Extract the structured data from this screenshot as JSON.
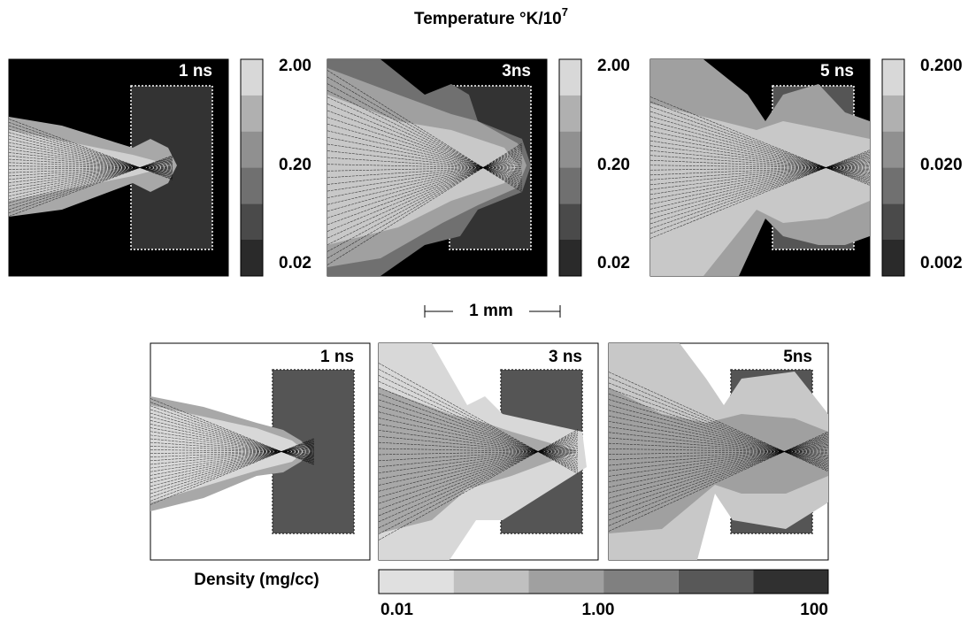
{
  "title": {
    "text": "Temperature °K/10",
    "superscript": "7"
  },
  "temperature_panels": [
    {
      "time": "1 ns",
      "colorbar_labels": [
        "2.00",
        "0.20",
        "0.02"
      ]
    },
    {
      "time": "3ns",
      "colorbar_labels": [
        "2.00",
        "0.20",
        "0.02"
      ]
    },
    {
      "time": "5 ns",
      "colorbar_labels": [
        "0.200",
        "0.020",
        "0.002"
      ]
    }
  ],
  "scale_bar": "1 mm",
  "density_panels": [
    {
      "time": "1 ns"
    },
    {
      "time": "3 ns"
    },
    {
      "time": "5ns"
    }
  ],
  "density_colorbar": {
    "title": "Density (mg/cc)",
    "labels": [
      "0.01",
      "1.00",
      "100"
    ]
  }
}
